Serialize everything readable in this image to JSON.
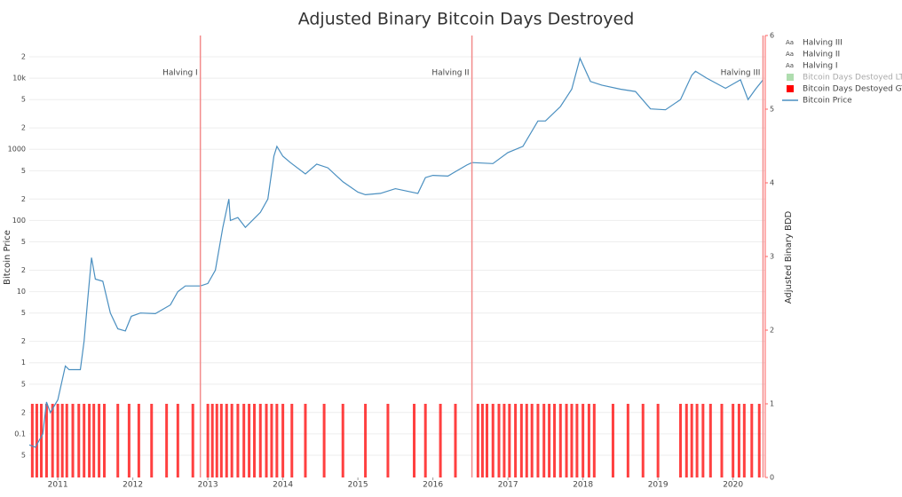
{
  "chart_data": {
    "type": "line",
    "title": "Adjusted Binary Bitcoin Days Destroyed",
    "y_label": "Bitcoin Price",
    "y2_label": "Adjusted Binary BDD",
    "log_y": true,
    "grid": true,
    "legend_position": "right",
    "legend_symbol": "Aa",
    "xlim": [
      2010.62,
      2020.43
    ],
    "xticks": [
      2011,
      2012,
      2013,
      2014,
      2015,
      2016,
      2017,
      2018,
      2019,
      2020
    ],
    "ylim": [
      0.0244,
      39800
    ],
    "yticks": [
      {
        "value": 0.05,
        "label": "5"
      },
      0.1,
      {
        "value": 0.2,
        "label": "2"
      },
      {
        "value": 0.5,
        "label": "5"
      },
      1,
      2,
      5,
      10,
      {
        "value": 20,
        "label": "2"
      },
      {
        "value": 50,
        "label": "5"
      },
      100,
      {
        "value": 200,
        "label": "2"
      },
      {
        "value": 500,
        "label": "5"
      },
      1000,
      {
        "value": 2000,
        "label": "2"
      },
      {
        "value": 5000,
        "label": "5"
      },
      {
        "value": 10000,
        "label": "10k"
      },
      {
        "value": 20000,
        "label": "2"
      }
    ],
    "y2lim": [
      0,
      6
    ],
    "y2ticks": [
      0,
      1,
      2,
      3,
      4,
      5,
      6
    ],
    "halvings": [
      {
        "name": "Halving III",
        "label": "Halving III",
        "x": 2020.4,
        "color": "#f28b8b"
      },
      {
        "name": "Halving II",
        "label": "Halving II",
        "x": 2016.52,
        "color": "#f28b8b"
      },
      {
        "name": "Halving I",
        "label": "Halving I",
        "x": 2012.9,
        "color": "#f28b8b"
      }
    ],
    "series": [
      {
        "name": "Bitcoin Days Destoyed LTA",
        "color": "#7ac77a",
        "visible": "legendonly"
      },
      {
        "name": "Bitcoin Days Destoyed GTA",
        "color": "#ff0000",
        "type": "bar",
        "axis": "y2",
        "x": [
          2010.66,
          2010.72,
          2010.78,
          2010.85,
          2010.93,
          2011.0,
          2011.06,
          2011.12,
          2011.2,
          2011.28,
          2011.35,
          2011.42,
          2011.48,
          2011.55,
          2011.62,
          2011.8,
          2011.95,
          2012.08,
          2012.25,
          2012.45,
          2012.6,
          2012.8,
          2013.0,
          2013.06,
          2013.12,
          2013.18,
          2013.25,
          2013.32,
          2013.4,
          2013.48,
          2013.55,
          2013.62,
          2013.7,
          2013.78,
          2013.85,
          2013.92,
          2014.0,
          2014.12,
          2014.3,
          2014.55,
          2014.8,
          2015.1,
          2015.4,
          2015.75,
          2015.9,
          2016.1,
          2016.3,
          2016.6,
          2016.66,
          2016.72,
          2016.8,
          2016.88,
          2016.95,
          2017.02,
          2017.1,
          2017.18,
          2017.25,
          2017.32,
          2017.4,
          2017.48,
          2017.55,
          2017.62,
          2017.7,
          2017.78,
          2017.85,
          2017.92,
          2018.0,
          2018.08,
          2018.15,
          2018.4,
          2018.6,
          2018.8,
          2019.0,
          2019.3,
          2019.38,
          2019.45,
          2019.52,
          2019.6,
          2019.7,
          2019.85,
          2020.0,
          2020.08,
          2020.15,
          2020.25,
          2020.35
        ],
        "values": [
          1,
          1,
          1,
          1,
          1,
          1,
          1,
          1,
          1,
          1,
          1,
          1,
          1,
          1,
          1,
          1,
          1,
          1,
          1,
          1,
          1,
          1,
          1,
          1,
          1,
          1,
          1,
          1,
          1,
          1,
          1,
          1,
          1,
          1,
          1,
          1,
          1,
          1,
          1,
          1,
          1,
          1,
          1,
          1,
          1,
          1,
          1,
          1,
          1,
          1,
          1,
          1,
          1,
          1,
          1,
          1,
          1,
          1,
          1,
          1,
          1,
          1,
          1,
          1,
          1,
          1,
          1,
          1,
          1,
          1,
          1,
          1,
          1,
          1,
          1,
          1,
          1,
          1,
          1,
          1,
          1,
          1,
          1,
          1,
          1
        ]
      },
      {
        "name": "Bitcoin Price",
        "color": "#4a8fc0",
        "type": "line",
        "x": [
          2010.62,
          2010.7,
          2010.8,
          2010.85,
          2010.9,
          2011.0,
          2011.1,
          2011.15,
          2011.3,
          2011.35,
          2011.4,
          2011.45,
          2011.5,
          2011.6,
          2011.7,
          2011.8,
          2011.9,
          2011.98,
          2012.1,
          2012.3,
          2012.5,
          2012.6,
          2012.7,
          2012.9,
          2013.0,
          2013.1,
          2013.2,
          2013.28,
          2013.3,
          2013.4,
          2013.5,
          2013.7,
          2013.8,
          2013.88,
          2013.92,
          2014.0,
          2014.1,
          2014.3,
          2014.45,
          2014.6,
          2014.8,
          2015.0,
          2015.1,
          2015.3,
          2015.5,
          2015.8,
          2015.9,
          2016.0,
          2016.2,
          2016.45,
          2016.52,
          2016.8,
          2017.0,
          2017.2,
          2017.4,
          2017.5,
          2017.7,
          2017.85,
          2017.96,
          2018.1,
          2018.25,
          2018.5,
          2018.7,
          2018.9,
          2019.1,
          2019.3,
          2019.45,
          2019.5,
          2019.65,
          2019.9,
          2020.1,
          2020.2,
          2020.3,
          2020.4
        ],
        "values": [
          0.07,
          0.065,
          0.1,
          0.28,
          0.2,
          0.3,
          0.9,
          0.8,
          0.8,
          2,
          8,
          30,
          15,
          14,
          5,
          3,
          2.8,
          4.5,
          5,
          4.9,
          6.5,
          10,
          12,
          12,
          13,
          20,
          80,
          200,
          100,
          110,
          80,
          130,
          200,
          800,
          1100,
          800,
          650,
          450,
          620,
          550,
          350,
          250,
          230,
          240,
          280,
          240,
          400,
          430,
          420,
          600,
          650,
          630,
          900,
          1100,
          2500,
          2500,
          4000,
          7000,
          19000,
          9000,
          8000,
          7000,
          6500,
          3700,
          3600,
          5000,
          11000,
          12500,
          10000,
          7200,
          9500,
          5000,
          7000,
          9500
        ]
      }
    ]
  }
}
